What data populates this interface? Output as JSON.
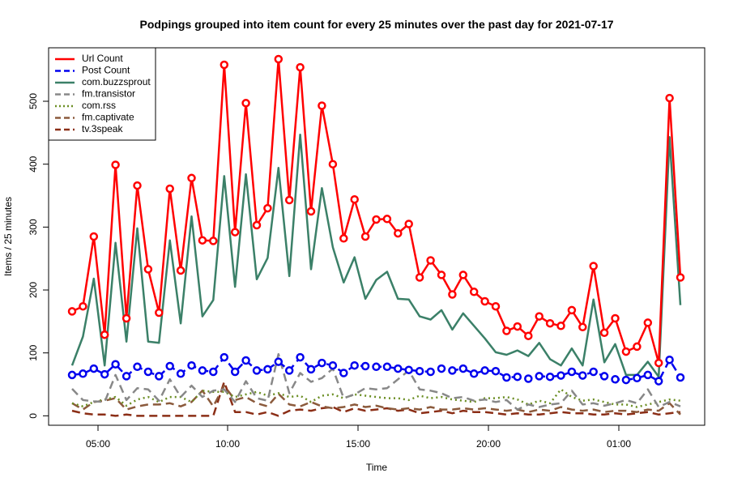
{
  "chart_data": {
    "type": "line",
    "title": "Podpings grouped into item count for every 25 minutes  over the past day for 2021-07-17",
    "xlabel": "Time",
    "ylabel": "Items / 25 minutes",
    "x_ticks": [
      "05:00",
      "10:00",
      "15:00",
      "20:00",
      "01:00"
    ],
    "y_ticks": [
      "0",
      "100",
      "200",
      "300",
      "400",
      "500"
    ],
    "ylim": [
      -15,
      585
    ],
    "legend_position": "top-left",
    "grid": false,
    "series": [
      {
        "name": "Url Count",
        "color": "#ff0000",
        "style": "solid-points",
        "values": [
          166,
          174,
          285,
          129,
          399,
          155,
          366,
          233,
          164,
          361,
          231,
          378,
          279,
          278,
          558,
          292,
          497,
          303,
          330,
          567,
          343,
          554,
          325,
          493,
          400,
          282,
          344,
          285,
          312,
          313,
          290,
          305,
          220,
          247,
          224,
          193,
          224,
          197,
          182,
          174,
          135,
          142,
          127,
          158,
          147,
          143,
          168,
          141,
          238,
          132,
          155,
          102,
          110,
          148,
          84,
          505,
          220
        ]
      },
      {
        "name": "Post Count",
        "color": "#0000ee",
        "style": "dashed-points",
        "values": [
          65,
          67,
          75,
          66,
          82,
          63,
          78,
          70,
          63,
          79,
          67,
          80,
          72,
          70,
          93,
          70,
          88,
          72,
          74,
          86,
          72,
          93,
          74,
          84,
          80,
          68,
          80,
          79,
          78,
          78,
          75,
          73,
          71,
          70,
          75,
          72,
          75,
          67,
          72,
          71,
          61,
          62,
          59,
          63,
          62,
          64,
          70,
          64,
          70,
          63,
          58,
          57,
          60,
          65,
          55,
          89,
          61
        ]
      },
      {
        "name": "com.buzzsprout",
        "color": "#3b8068",
        "style": "solid",
        "values": [
          80,
          126,
          218,
          80,
          275,
          118,
          298,
          118,
          116,
          279,
          147,
          317,
          158,
          184,
          381,
          205,
          384,
          217,
          251,
          394,
          222,
          447,
          233,
          362,
          268,
          212,
          252,
          186,
          216,
          229,
          186,
          185,
          158,
          153,
          168,
          137,
          163,
          143,
          123,
          101,
          97,
          104,
          95,
          116,
          90,
          80,
          107,
          80,
          185,
          85,
          114,
          65,
          65,
          86,
          62,
          443,
          176
        ]
      },
      {
        "name": "fm.transistor",
        "color": "#888888",
        "style": "dashed",
        "values": [
          43,
          25,
          23,
          22,
          65,
          25,
          44,
          42,
          24,
          58,
          30,
          48,
          30,
          40,
          42,
          22,
          55,
          28,
          24,
          98,
          36,
          68,
          54,
          60,
          75,
          28,
          34,
          44,
          42,
          44,
          58,
          72,
          42,
          40,
          36,
          28,
          30,
          24,
          26,
          22,
          25,
          10,
          18,
          14,
          18,
          20,
          40,
          18,
          20,
          16,
          20,
          25,
          20,
          42,
          14,
          22,
          15
        ]
      },
      {
        "name": "com.rss",
        "color": "#6b8e23",
        "style": "dotted",
        "values": [
          20,
          15,
          22,
          26,
          30,
          16,
          26,
          30,
          22,
          30,
          30,
          22,
          40,
          38,
          38,
          30,
          34,
          38,
          32,
          36,
          30,
          32,
          22,
          32,
          34,
          28,
          34,
          32,
          30,
          28,
          28,
          25,
          32,
          28,
          30,
          26,
          24,
          22,
          28,
          28,
          30,
          26,
          18,
          24,
          20,
          42,
          30,
          24,
          26,
          22,
          18,
          18,
          14,
          18,
          22,
          26,
          24
        ]
      },
      {
        "name": "fm.captivate",
        "color": "#8b5a3c",
        "style": "dashed",
        "values": [
          20,
          10,
          22,
          24,
          28,
          10,
          15,
          18,
          18,
          20,
          15,
          22,
          40,
          15,
          48,
          25,
          30,
          20,
          15,
          35,
          18,
          15,
          22,
          15,
          12,
          14,
          18,
          14,
          16,
          12,
          10,
          12,
          10,
          14,
          10,
          10,
          12,
          10,
          12,
          10,
          8,
          10,
          6,
          10,
          8,
          14,
          10,
          8,
          10,
          6,
          8,
          8,
          6,
          10,
          8,
          20,
          2
        ]
      },
      {
        "name": "tv.3speak",
        "color": "#8b2e16",
        "style": "dashed",
        "values": [
          8,
          4,
          2,
          2,
          0,
          2,
          0,
          0,
          0,
          0,
          0,
          0,
          0,
          0,
          54,
          6,
          6,
          2,
          6,
          0,
          8,
          10,
          8,
          12,
          14,
          6,
          12,
          8,
          10,
          12,
          8,
          10,
          4,
          6,
          8,
          4,
          8,
          6,
          6,
          4,
          2,
          4,
          2,
          2,
          4,
          6,
          4,
          4,
          2,
          2,
          4,
          2,
          4,
          6,
          2,
          4,
          6
        ]
      }
    ]
  }
}
